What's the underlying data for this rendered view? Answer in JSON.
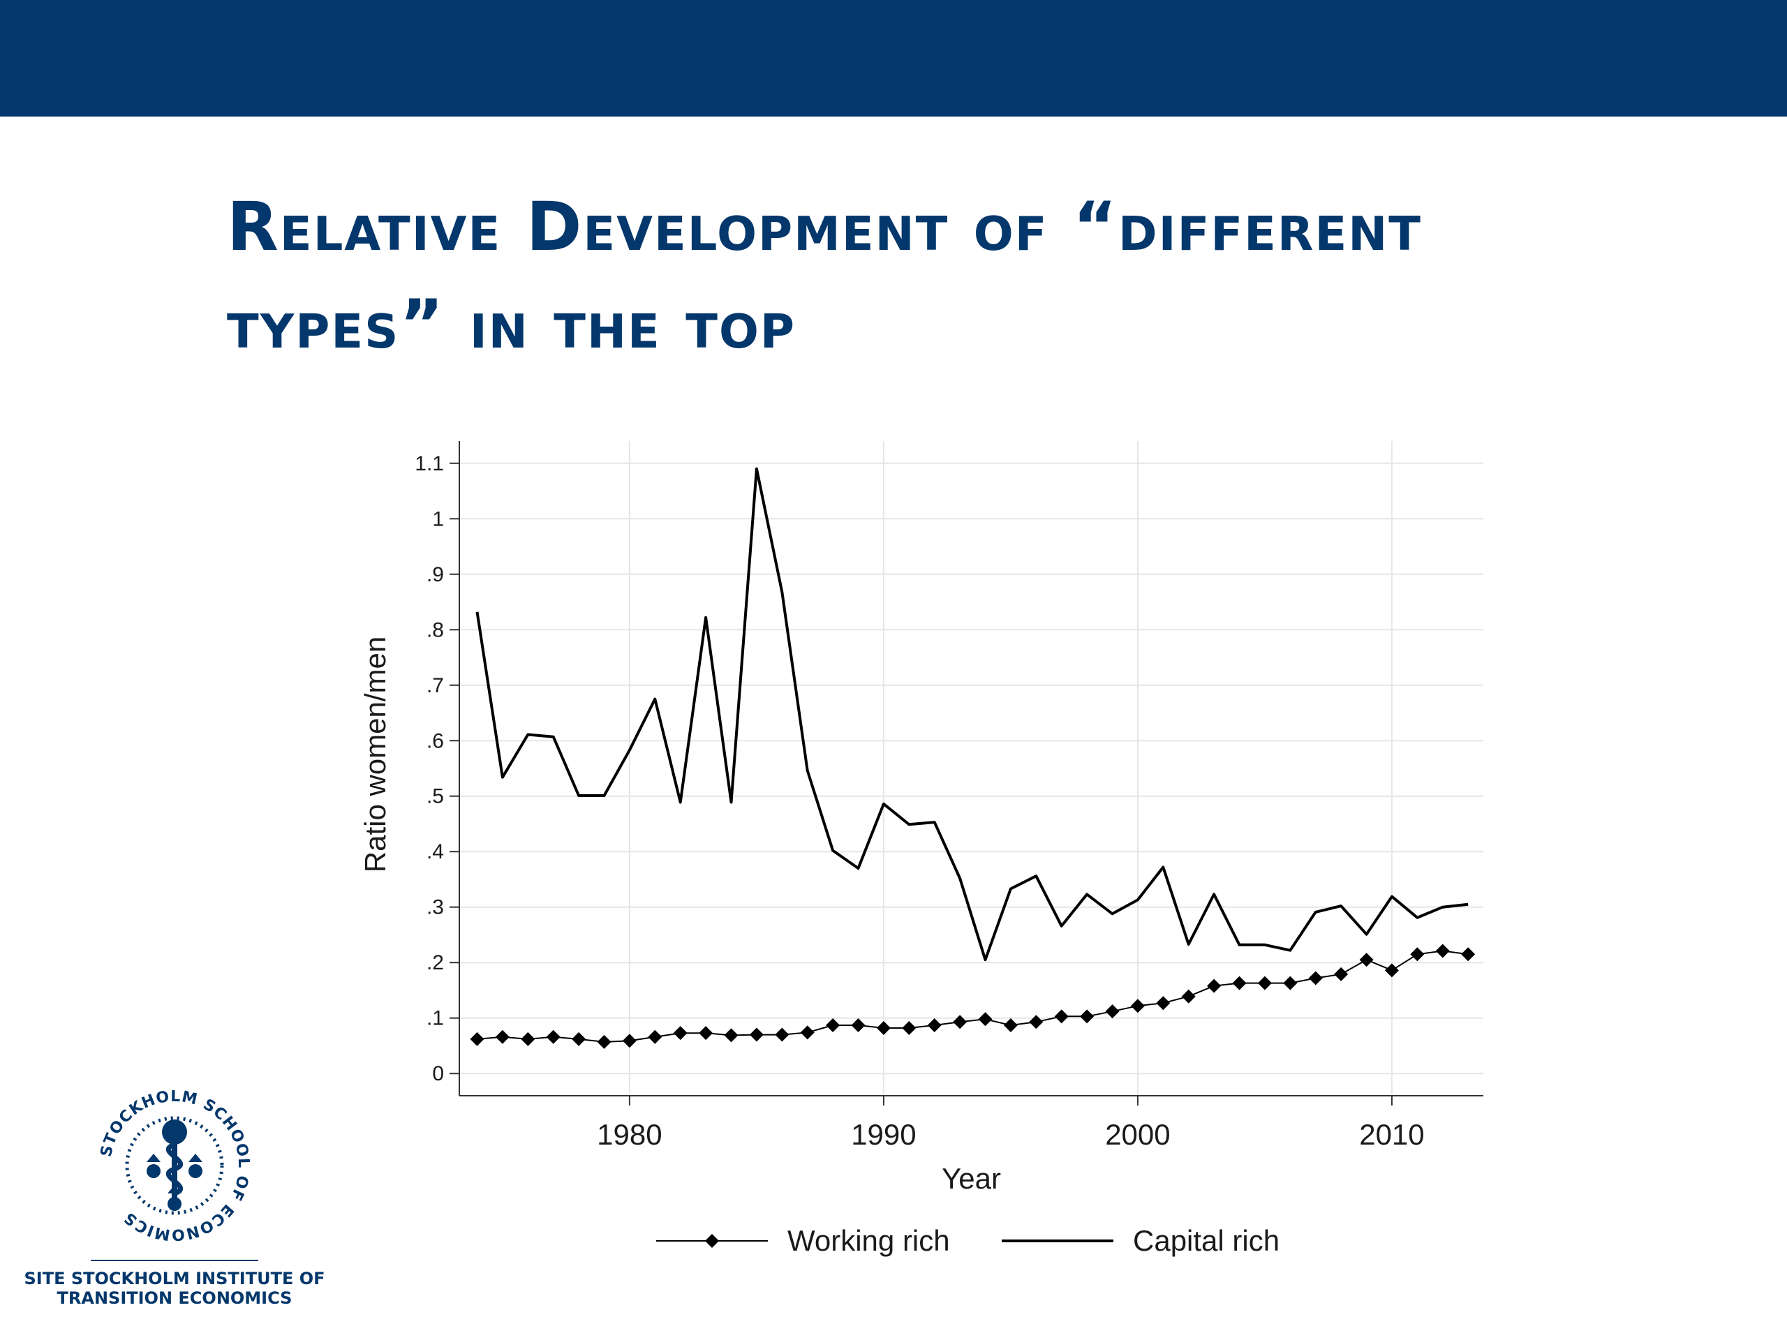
{
  "header": {
    "bar_color": "#04376b"
  },
  "title": {
    "line1": "Relative Development of “different",
    "line2": "types” in the top",
    "color": "#04376b"
  },
  "logo": {
    "ring_text": "STOCKHOLM SCHOOL OF ECONOMICS",
    "line1": "SITE STOCKHOLM INSTITUTE OF",
    "line2": "TRANSITION ECONOMICS"
  },
  "chart_data": {
    "type": "line",
    "title": "",
    "xlabel": "Year",
    "ylabel": "Ratio women/men",
    "xlim": [
      1973.3,
      2013.6
    ],
    "ylim": [
      -0.04,
      1.14
    ],
    "xticks": [
      1980,
      1990,
      2000,
      2010
    ],
    "xtick_labels": [
      "1980",
      "1990",
      "2000",
      "2010"
    ],
    "yticks": [
      0,
      0.1,
      0.2,
      0.3,
      0.4,
      0.5,
      0.6,
      0.7,
      0.8,
      0.9,
      1,
      1.1
    ],
    "ytick_labels": [
      "0",
      ".1",
      ".2",
      ".3",
      ".4",
      ".5",
      ".6",
      ".7",
      ".8",
      ".9",
      "1",
      "1.1"
    ],
    "grid": true,
    "legend_position": "bottom",
    "x": [
      1974,
      1975,
      1976,
      1977,
      1978,
      1979,
      1980,
      1981,
      1982,
      1983,
      1984,
      1985,
      1986,
      1987,
      1988,
      1989,
      1990,
      1991,
      1992,
      1993,
      1994,
      1995,
      1996,
      1997,
      1998,
      1999,
      2000,
      2001,
      2002,
      2003,
      2004,
      2005,
      2006,
      2007,
      2008,
      2009,
      2010,
      2011,
      2012,
      2013
    ],
    "series": [
      {
        "name": "Working rich",
        "marker": "diamond",
        "color": "#000000",
        "values": [
          0.062,
          0.066,
          0.062,
          0.066,
          0.062,
          0.057,
          0.059,
          0.066,
          0.073,
          0.073,
          0.069,
          0.07,
          0.07,
          0.074,
          0.087,
          0.087,
          0.082,
          0.082,
          0.087,
          0.093,
          0.098,
          0.087,
          0.093,
          0.103,
          0.103,
          0.112,
          0.122,
          0.127,
          0.139,
          0.158,
          0.163,
          0.163,
          0.163,
          0.172,
          0.179,
          0.205,
          0.186,
          0.215,
          0.221,
          0.215
        ]
      },
      {
        "name": "Capital rich",
        "marker": "none",
        "color": "#000000",
        "values": [
          0.832,
          0.534,
          0.611,
          0.607,
          0.501,
          0.501,
          0.583,
          0.675,
          0.489,
          0.822,
          0.489,
          1.09,
          0.868,
          0.546,
          0.402,
          0.37,
          0.486,
          0.449,
          0.453,
          0.352,
          0.205,
          0.333,
          0.356,
          0.266,
          0.323,
          0.288,
          0.313,
          0.372,
          0.233,
          0.323,
          0.232,
          0.232,
          0.222,
          0.291,
          0.302,
          0.251,
          0.319,
          0.281,
          0.3,
          0.305
        ]
      }
    ]
  }
}
